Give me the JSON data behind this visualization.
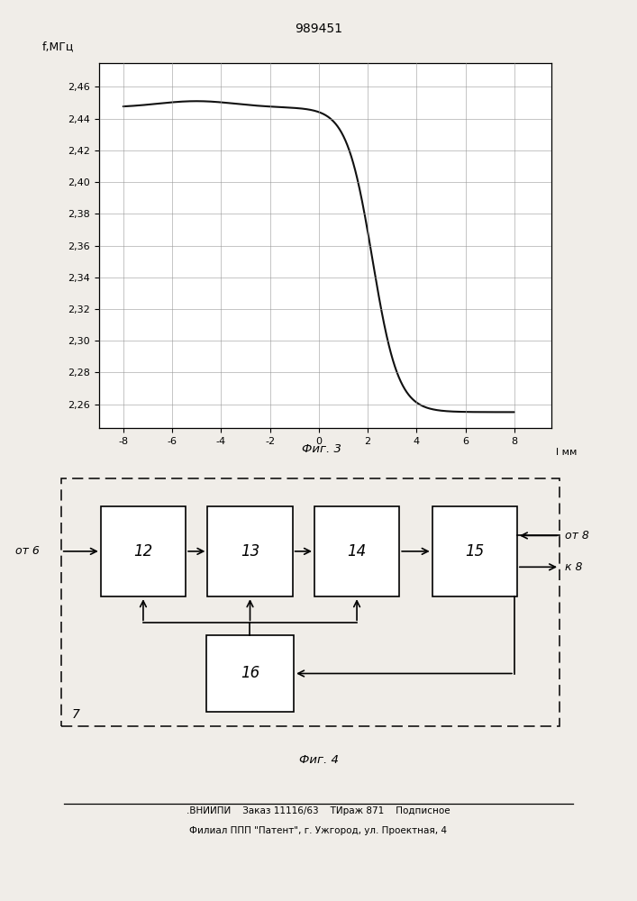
{
  "patent_number": "989451",
  "fig3": {
    "ylabel": "f,МГц",
    "xlabel": "l мм",
    "caption": "Фиг. 3",
    "xlim": [
      -9,
      9.5
    ],
    "ylim": [
      2.245,
      2.475
    ],
    "xticks": [
      -8,
      -6,
      -4,
      -2,
      0,
      2,
      4,
      6,
      8
    ],
    "yticks": [
      2.26,
      2.28,
      2.3,
      2.32,
      2.34,
      2.36,
      2.38,
      2.4,
      2.42,
      2.44,
      2.46
    ],
    "ytick_labels": [
      "2,26",
      "2,28",
      "2,30",
      "2,32",
      "2,34",
      "2,36",
      "2,38",
      "2,40",
      "2,42",
      "2,44",
      "2,46"
    ],
    "xtick_labels": [
      "-8",
      "-6",
      "-4",
      "-2",
      "0",
      "2",
      "4",
      "6",
      "8"
    ],
    "curve_color": "#111111",
    "grid_color": "#999999",
    "bg_color": "#ffffff"
  },
  "fig4": {
    "caption": "Фиг. 4",
    "label_from6": "от 6",
    "label_from8": "от 8",
    "label_to8": "к 8",
    "label_7": "7"
  },
  "footer_line1": ".ВНИИПИ    Заказ 11116/63    ТИраж 871    Подписное",
  "footer_line2": "Филиал ППП \"Патент\", г. Ужгород, ул. Проектная, 4",
  "bg_color": "#f0ede8"
}
